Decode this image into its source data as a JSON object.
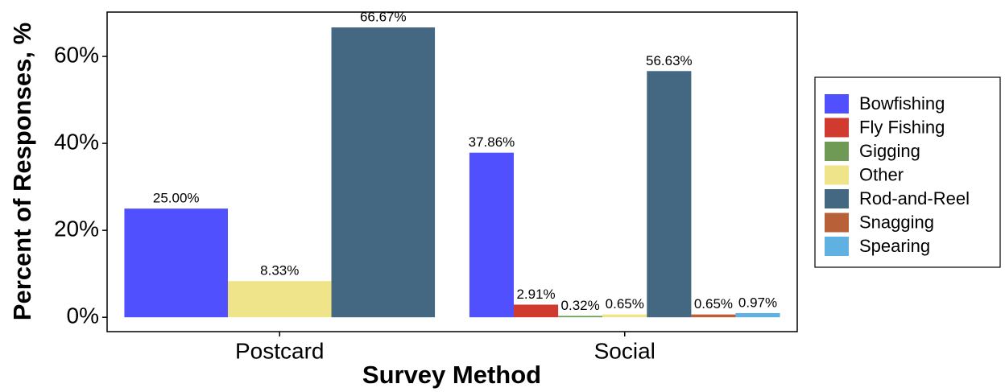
{
  "chart_data": {
    "type": "bar",
    "x_label": "Survey Method",
    "y_label": "Percent of Responses, %",
    "categories": [
      "Postcard",
      "Social"
    ],
    "series": [
      {
        "name": "Bowfishing",
        "color": "#5050ff",
        "values": [
          25.0,
          37.86
        ],
        "value_labels": [
          "25.00%",
          "37.86%"
        ]
      },
      {
        "name": "Fly Fishing",
        "color": "#d03a2f",
        "values": [
          null,
          2.91
        ],
        "value_labels": [
          null,
          "2.91%"
        ]
      },
      {
        "name": "Gigging",
        "color": "#6e9a55",
        "values": [
          null,
          0.32
        ],
        "value_labels": [
          null,
          "0.32%"
        ]
      },
      {
        "name": "Other",
        "color": "#f0e48a",
        "values": [
          8.33,
          0.65
        ],
        "value_labels": [
          "8.33%",
          "0.65%"
        ]
      },
      {
        "name": "Rod-and-Reel",
        "color": "#456882",
        "values": [
          66.67,
          56.63
        ],
        "value_labels": [
          "66.67%",
          "56.63%"
        ]
      },
      {
        "name": "Snagging",
        "color": "#b86038",
        "values": [
          null,
          0.65
        ],
        "value_labels": [
          null,
          "0.65%"
        ]
      },
      {
        "name": "Spearing",
        "color": "#5eb1e0",
        "values": [
          null,
          0.97
        ],
        "value_labels": [
          null,
          "0.97%"
        ]
      }
    ],
    "ylim": [
      -3.3,
      70.2
    ],
    "yticks": [
      {
        "value": 0,
        "label": "0%"
      },
      {
        "value": 20,
        "label": "20%"
      },
      {
        "value": 40,
        "label": "40%"
      },
      {
        "value": 60,
        "label": "60%"
      }
    ],
    "grid": false,
    "legend_position": "right"
  }
}
